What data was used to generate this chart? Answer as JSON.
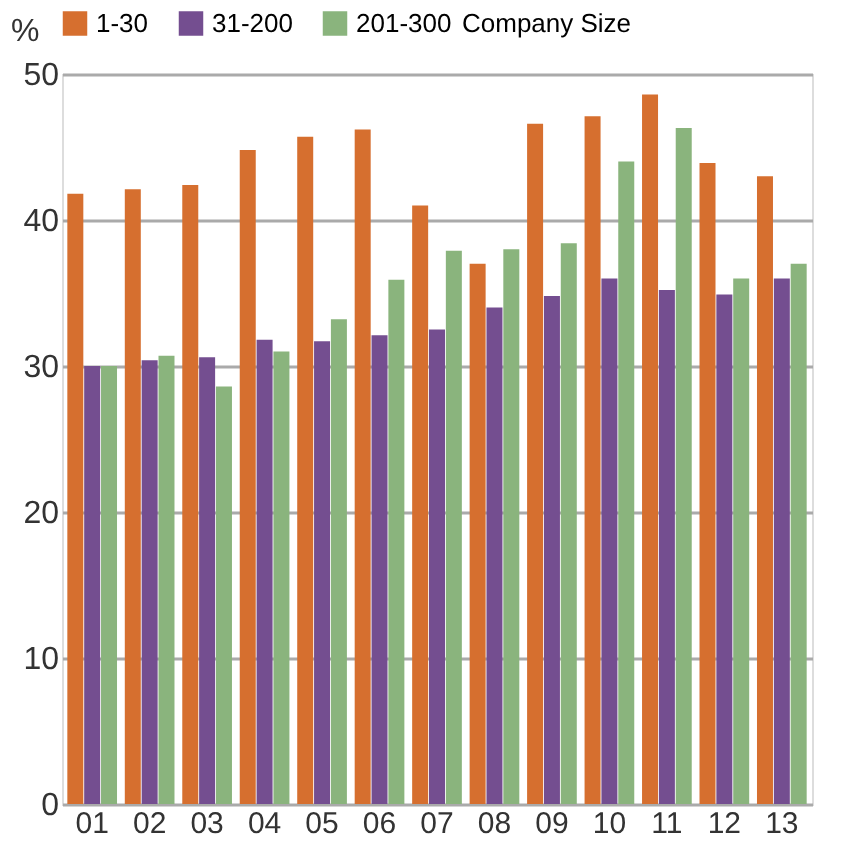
{
  "chart_data": {
    "type": "bar",
    "ylabel": "%",
    "legend_title": "Company Size",
    "categories": [
      "01",
      "02",
      "03",
      "04",
      "05",
      "06",
      "07",
      "08",
      "09",
      "10",
      "11",
      "12",
      "13"
    ],
    "series": [
      {
        "name": "1-30",
        "color": "#d66f2f",
        "values": [
          41.8,
          42.1,
          42.4,
          44.8,
          45.7,
          46.2,
          41.0,
          37.0,
          46.6,
          47.1,
          48.6,
          43.9,
          43.0
        ]
      },
      {
        "name": "31-200",
        "color": "#744e90",
        "values": [
          30.0,
          30.4,
          30.6,
          31.8,
          31.7,
          32.1,
          32.5,
          34.0,
          34.8,
          36.0,
          35.2,
          34.9,
          36.0
        ]
      },
      {
        "name": "201-300",
        "color": "#8ab47d",
        "values": [
          30.0,
          30.7,
          28.6,
          31.0,
          33.2,
          35.9,
          37.9,
          38.0,
          38.4,
          44.0,
          46.3,
          36.0,
          37.0
        ]
      }
    ],
    "ylim": [
      0,
      50
    ],
    "yticks": [
      0,
      10,
      20,
      30,
      40,
      50
    ],
    "grid": "y",
    "legend": "top"
  }
}
